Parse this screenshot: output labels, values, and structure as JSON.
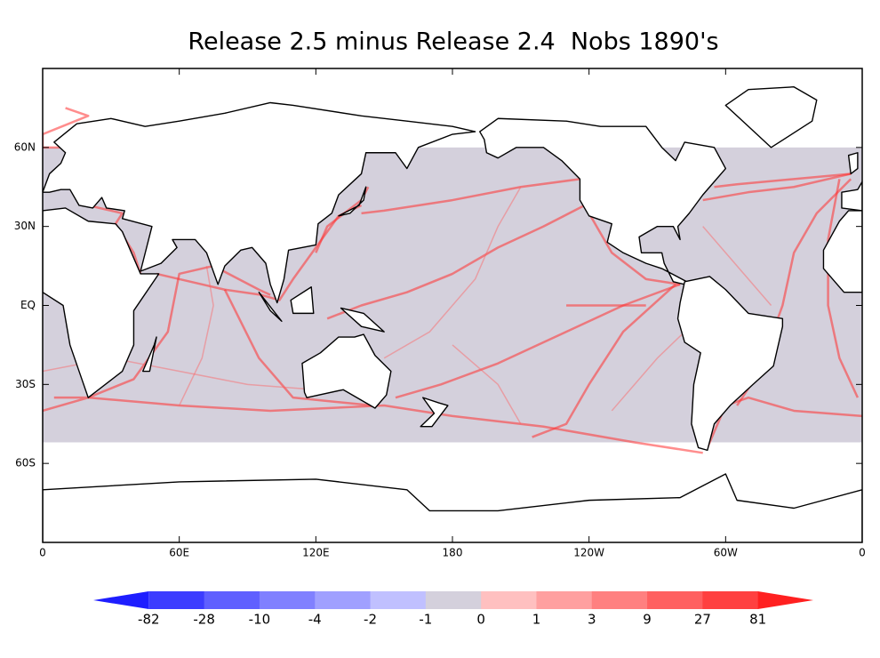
{
  "chart_data": {
    "type": "map",
    "title": "Release 2.5 minus Release 2.4  Nobs 1890's",
    "xlim": [
      0,
      360
    ],
    "ylim": [
      -90,
      90
    ],
    "xticks": [
      0,
      {
        "value": 60,
        "label": "60E"
      },
      {
        "value": 120,
        "label": "120E"
      },
      180,
      {
        "value": 240,
        "label": "120W"
      },
      {
        "value": 300,
        "label": "60W"
      },
      {
        "value": 360,
        "label": "0"
      }
    ],
    "yticks": [
      {
        "value": -60,
        "label": "60S"
      },
      {
        "value": -30,
        "label": "30S"
      },
      {
        "value": 0,
        "label": "EQ"
      },
      {
        "value": 30,
        "label": "30N"
      },
      {
        "value": 60,
        "label": "60N"
      }
    ],
    "colorbar": {
      "boundaries": [
        -82,
        -28,
        -10,
        -4,
        -2,
        -1,
        0,
        1,
        3,
        9,
        27,
        81
      ],
      "colors": [
        "#1e1eff",
        "#3c3cff",
        "#5f5fff",
        "#8080ff",
        "#a0a0ff",
        "#c0c0ff",
        "#d4d0dc",
        "#ffc0c0",
        "#ffa0a0",
        "#ff8080",
        "#ff6060",
        "#ff4040",
        "#ff2020"
      ]
    }
  }
}
